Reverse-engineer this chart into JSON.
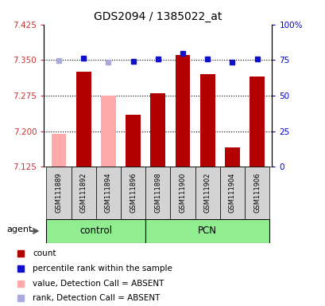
{
  "title": "GDS2094 / 1385022_at",
  "samples": [
    "GSM111889",
    "GSM111892",
    "GSM111894",
    "GSM111896",
    "GSM111898",
    "GSM111900",
    "GSM111902",
    "GSM111904",
    "GSM111906"
  ],
  "bar_values": [
    7.195,
    7.325,
    7.275,
    7.235,
    7.28,
    7.36,
    7.32,
    7.165,
    7.315
  ],
  "absent_flags": [
    true,
    false,
    true,
    false,
    false,
    false,
    false,
    false,
    false
  ],
  "percentile_values": [
    74.5,
    76.5,
    73.5,
    74.0,
    75.5,
    79.5,
    75.5,
    73.5,
    75.5
  ],
  "absent_percentile": [
    true,
    false,
    true,
    false,
    false,
    false,
    false,
    false,
    false
  ],
  "ylim_left": [
    7.125,
    7.425
  ],
  "ylim_right": [
    0,
    100
  ],
  "yticks_left": [
    7.125,
    7.2,
    7.275,
    7.35,
    7.425
  ],
  "yticks_right": [
    0,
    25,
    50,
    75,
    100
  ],
  "ytick_labels_right": [
    "0",
    "25",
    "50",
    "75",
    "100%"
  ],
  "hlines": [
    7.2,
    7.275,
    7.35
  ],
  "bar_color_normal": "#b30000",
  "bar_color_absent": "#ffaaaa",
  "dot_color_normal": "#1010cc",
  "dot_color_absent": "#aaaadd",
  "group_label_control": "control",
  "group_label_pcn": "PCN",
  "agent_label": "agent",
  "legend_items": [
    {
      "label": "count",
      "color": "#b30000"
    },
    {
      "label": "percentile rank within the sample",
      "color": "#1010cc"
    },
    {
      "label": "value, Detection Call = ABSENT",
      "color": "#ffaaaa"
    },
    {
      "label": "rank, Detection Call = ABSENT",
      "color": "#aaaadd"
    }
  ],
  "bar_width": 0.6,
  "figsize": [
    4.1,
    3.84
  ],
  "dpi": 100
}
